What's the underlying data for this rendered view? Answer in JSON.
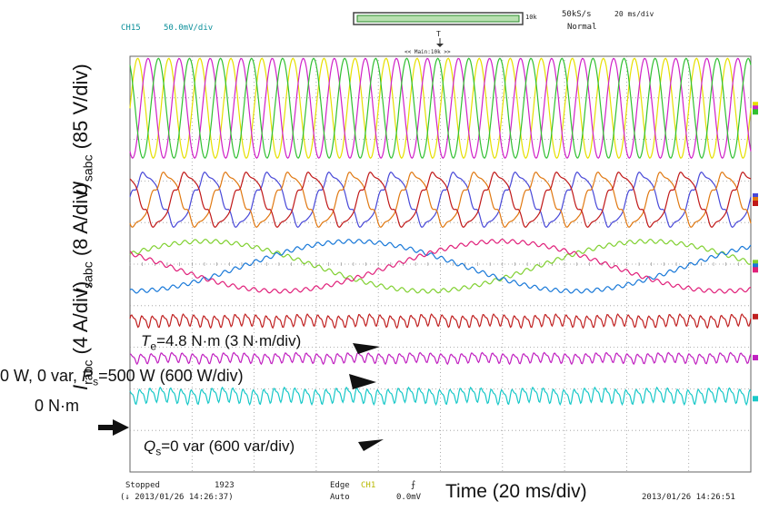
{
  "header": {
    "channel": "CH15",
    "scale": "50.0mV/div",
    "zoom_label": "10k",
    "sample_rate": "50kS/s",
    "time_div": "20 ms/div",
    "mode": "Normal",
    "trigger_marker": "T",
    "hold_label": "<< Main:10k >>"
  },
  "labels": {
    "u_sym": "U",
    "u_sub": "sabc",
    "u_scale": " (85 V/div)",
    "i_sym": "I",
    "i_sub": "sabc",
    "i_scale": " (8 A/div)",
    "r_sym": "I",
    "r_sub": "rabc",
    "r_scale": " (4 A/div)"
  },
  "annotations": {
    "te_sym": "T",
    "te_sub": "e",
    "te_text": "=4.8 N·m (3 N·m/div)",
    "ps_prefix": "0 W, 0 var, ",
    "ps_sym": "P",
    "ps_sub": "s",
    "ps_text": "=500 W (600 W/div)",
    "zero_torque": "0 N·m",
    "qs_sym": "Q",
    "qs_sub": "s",
    "qs_text": "=0 var (600 var/div)"
  },
  "footer": {
    "status": "Stopped",
    "count": "1923",
    "start_time": "(↓ 2013/01/26 14:26:37)",
    "edge": "Edge",
    "edge_ch": "CH1",
    "auto": "Auto",
    "level": "0.0mV",
    "xlabel": "Time (20 ms/div)",
    "end_time": "2013/01/26 14:26:51"
  },
  "chart_data": {
    "type": "line",
    "xlabel": "Time (20 ms/div)",
    "x_range_ms": [
      0,
      200
    ],
    "divisions_x": 10,
    "divisions_y": 10,
    "grid": true,
    "series": [
      {
        "name": "Usa",
        "group": "U",
        "color": "#e6e000",
        "freq_hz": 100,
        "amp_div": 1.2,
        "center_div": 1.25,
        "phase_deg": 0
      },
      {
        "name": "Usb",
        "group": "U",
        "color": "#d020c8",
        "freq_hz": 100,
        "amp_div": 1.2,
        "center_div": 1.25,
        "phase_deg": -120
      },
      {
        "name": "Usc",
        "group": "U",
        "color": "#30c030",
        "freq_hz": 100,
        "amp_div": 1.2,
        "center_div": 1.25,
        "phase_deg": 120
      },
      {
        "name": "Isa",
        "group": "I",
        "color": "#4848d8",
        "freq_hz": 50,
        "amp_div": 0.6,
        "center_div": 3.45,
        "phase_deg": 0
      },
      {
        "name": "Isb",
        "group": "I",
        "color": "#e07810",
        "freq_hz": 50,
        "amp_div": 0.6,
        "center_div": 3.45,
        "phase_deg": -120
      },
      {
        "name": "Isc",
        "group": "I",
        "color": "#c01818",
        "freq_hz": 50,
        "amp_div": 0.6,
        "center_div": 3.45,
        "phase_deg": 120
      },
      {
        "name": "Ira",
        "group": "Ir",
        "color": "#80d030",
        "freq_hz": 7,
        "amp_div": 0.6,
        "center_div": 5.05,
        "phase_deg": 0
      },
      {
        "name": "Irb",
        "group": "Ir",
        "color": "#1878d8",
        "freq_hz": 7,
        "amp_div": 0.6,
        "center_div": 5.05,
        "phase_deg": -120
      },
      {
        "name": "Irc",
        "group": "Ir",
        "color": "#e0207a",
        "freq_hz": 7,
        "amp_div": 0.6,
        "center_div": 5.05,
        "phase_deg": 120
      },
      {
        "name": "Te",
        "group": "Te",
        "color": "#c02020",
        "freq_hz": 300,
        "amp_div": 0.12,
        "center_div": 6.35,
        "phase_deg": 0
      },
      {
        "name": "Ps",
        "group": "Ps",
        "color": "#c020c0",
        "freq_hz": 300,
        "amp_div": 0.1,
        "center_div": 7.25,
        "phase_deg": 40
      },
      {
        "name": "Qs",
        "group": "Qs",
        "color": "#18c8c8",
        "freq_hz": 300,
        "amp_div": 0.15,
        "center_div": 8.15,
        "phase_deg": 80
      }
    ]
  }
}
